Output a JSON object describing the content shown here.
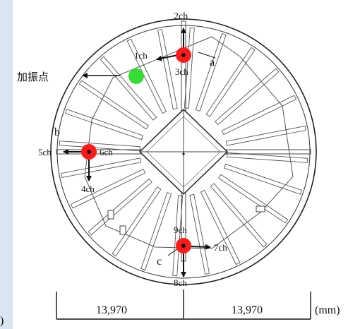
{
  "figure": {
    "excitation_point_label": "加振点",
    "region_labels": {
      "a": "a",
      "b": "b",
      "c": "c"
    },
    "channels": {
      "ch1": "1ch",
      "ch2": "2ch",
      "ch3": "3ch",
      "ch4": "4ch",
      "ch5": "5ch",
      "ch6": "6ch",
      "ch7": "7ch",
      "ch8": "8ch",
      "ch9": "9ch"
    },
    "dimensions": {
      "left": "13,970",
      "right": "13,970",
      "unit": "(mm)"
    },
    "stray_paren": ")"
  },
  "colors": {
    "sensor": "#ff1a1a",
    "excitation": "#33dd33",
    "background": "#d9e6f2",
    "line": "#111111"
  },
  "icons": [
    "sensor-marker",
    "excitation-marker",
    "arrow"
  ]
}
